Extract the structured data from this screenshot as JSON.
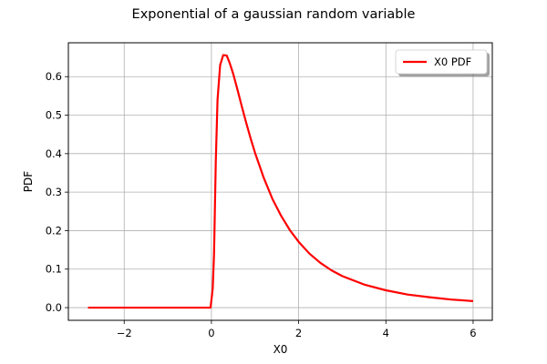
{
  "chart_data": {
    "type": "line",
    "title": "Exponential of a gaussian random variable",
    "xlabel": "X0",
    "ylabel": "PDF",
    "xlim": [
      -3.28,
      6.44
    ],
    "ylim": [
      -0.033,
      0.688
    ],
    "xticks": [
      -2,
      0,
      2,
      4,
      6
    ],
    "yticks": [
      0.0,
      0.1,
      0.2,
      0.3,
      0.4,
      0.5,
      0.6
    ],
    "grid": true,
    "legend": {
      "position": "top-right",
      "shadow": true
    },
    "series": [
      {
        "name": "X0 PDF",
        "color": "#ff0000",
        "x": [
          -2.83,
          -2.0,
          -1.0,
          -0.5,
          -0.2,
          -0.02,
          0.03,
          0.06,
          0.1,
          0.14,
          0.2,
          0.27,
          0.35,
          0.42,
          0.5,
          0.6,
          0.7,
          0.8,
          0.9,
          1.0,
          1.2,
          1.4,
          1.6,
          1.8,
          2.0,
          2.25,
          2.5,
          2.75,
          3.0,
          3.5,
          4.0,
          4.5,
          5.0,
          5.5,
          6.0
        ],
        "y": [
          0.0,
          0.0,
          0.0,
          0.0,
          0.0,
          0.0,
          0.05,
          0.14,
          0.38,
          0.54,
          0.63,
          0.656,
          0.655,
          0.635,
          0.607,
          0.565,
          0.521,
          0.479,
          0.439,
          0.402,
          0.337,
          0.282,
          0.238,
          0.201,
          0.171,
          0.14,
          0.116,
          0.097,
          0.082,
          0.06,
          0.045,
          0.034,
          0.027,
          0.021,
          0.017
        ]
      }
    ]
  }
}
